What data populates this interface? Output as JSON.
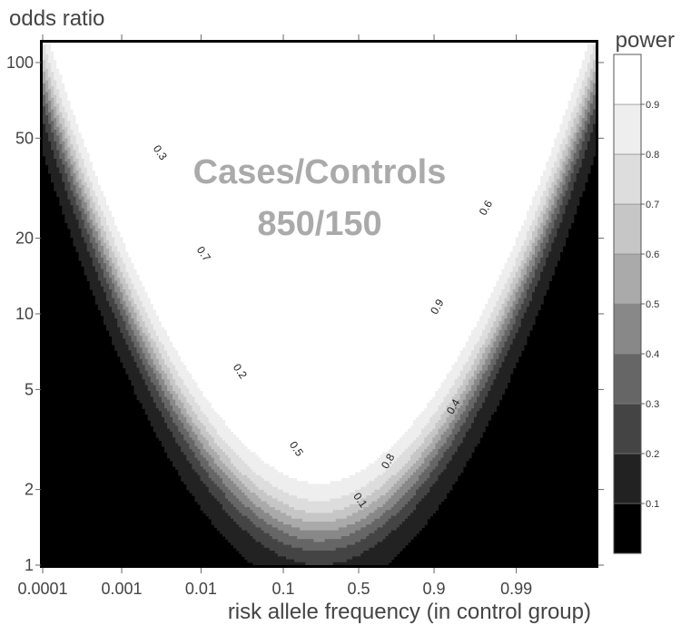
{
  "chart_data": {
    "type": "heatmap",
    "subtype": "filled-contour",
    "ylabel": "odds ratio",
    "xlabel": "risk allele frequency (in control group)",
    "legend_title": "power",
    "overlay_text": [
      "Cases/Controls",
      "850/150"
    ],
    "x_scale": "logit",
    "y_scale": "log",
    "xlim": [
      0.0001,
      0.999
    ],
    "ylim": [
      1,
      120
    ],
    "x_ticks": [
      {
        "value": 0.0001,
        "label": "0.0001"
      },
      {
        "value": 0.001,
        "label": "0.001"
      },
      {
        "value": 0.01,
        "label": "0.01"
      },
      {
        "value": 0.1,
        "label": "0.1"
      },
      {
        "value": 0.5,
        "label": "0.5"
      },
      {
        "value": 0.9,
        "label": "0.9"
      },
      {
        "value": 0.99,
        "label": "0.99"
      }
    ],
    "y_ticks": [
      {
        "value": 1,
        "label": "1"
      },
      {
        "value": 2,
        "label": "2"
      },
      {
        "value": 5,
        "label": "5"
      },
      {
        "value": 10,
        "label": "10"
      },
      {
        "value": 20,
        "label": "20"
      },
      {
        "value": 50,
        "label": "50"
      },
      {
        "value": 100,
        "label": "100"
      }
    ],
    "levels": [
      0.1,
      0.2,
      0.3,
      0.4,
      0.5,
      0.6,
      0.7,
      0.8,
      0.9
    ],
    "legend_labels": [
      "0.1",
      "0.2",
      "0.3",
      "0.4",
      "0.5",
      "0.6",
      "0.7",
      "0.8",
      "0.9"
    ],
    "band_colors": [
      "#000000",
      "#222222",
      "#444444",
      "#666666",
      "#888888",
      "#aaaaaa",
      "#c6c6c6",
      "#dddddd",
      "#eeeeee",
      "#ffffff"
    ],
    "contour_labels": [
      {
        "text": "0.3",
        "x": 0.0028,
        "y": 43
      },
      {
        "text": "0.7",
        "x": 0.0099,
        "y": 17
      },
      {
        "text": "0.2",
        "x": 0.028,
        "y": 5.8
      },
      {
        "text": "0.5",
        "x": 0.13,
        "y": 2.85
      },
      {
        "text": "0.1",
        "x": 0.49,
        "y": 1.78
      },
      {
        "text": "0.8",
        "x": 0.72,
        "y": 2.55
      },
      {
        "text": "0.4",
        "x": 0.945,
        "y": 4.2
      },
      {
        "text": "0.9",
        "x": 0.915,
        "y": 10.5
      },
      {
        "text": "0.6",
        "x": 0.978,
        "y": 26
      }
    ]
  }
}
